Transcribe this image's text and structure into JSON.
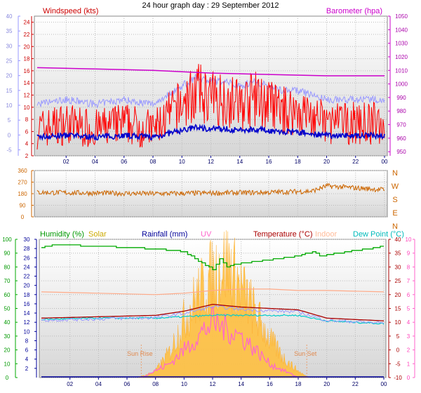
{
  "page_title": "24 hour graph day : 29 September 2012",
  "colors": {
    "windspeed": "#ff0000",
    "wind_avg": "#0000cc",
    "barometer": "#cc00cc",
    "gust_line": "#9999ff",
    "direction": "#cc6600",
    "humidity": "#00aa00",
    "solar": "#ffc040",
    "rainfall": "#000099",
    "uv": "#ff66cc",
    "temperature": "#aa0000",
    "indoor": "#ffaa88",
    "dewpoint": "#00cccc"
  },
  "chart_data": [
    {
      "type": "line",
      "id": "wind_baro",
      "title_left": "Windspeed (kts)",
      "title_right": "Barometer (hpa)",
      "x_ticks": [
        "02",
        "04",
        "06",
        "08",
        "10",
        "12",
        "14",
        "16",
        "18",
        "20",
        "22",
        "00"
      ],
      "y_left_red": {
        "ticks": [
          2,
          4,
          6,
          8,
          10,
          12,
          14,
          16,
          18,
          20,
          22,
          24
        ],
        "range": [
          2,
          25
        ]
      },
      "y_left_blue": {
        "ticks": [
          -5,
          0,
          5,
          10,
          15,
          20,
          25,
          30,
          35,
          40
        ],
        "range": [
          -7,
          40
        ]
      },
      "y_right": {
        "ticks": [
          950,
          960,
          970,
          980,
          990,
          1000,
          1010,
          1020,
          1030,
          1040,
          1050
        ],
        "range": [
          947,
          1050
        ]
      },
      "series": [
        {
          "name": "Windspeed",
          "hours": [
            0,
            2,
            4,
            6,
            8,
            10,
            11,
            12,
            13,
            14,
            15,
            16,
            17,
            18,
            19,
            20,
            22,
            24
          ],
          "values": [
            6,
            7,
            6,
            7,
            6,
            10,
            12,
            11,
            11,
            10,
            11,
            10,
            9,
            9,
            8,
            7,
            7,
            7
          ]
        },
        {
          "name": "Barometer",
          "hours": [
            0,
            4,
            8,
            12,
            16,
            20,
            24
          ],
          "values": [
            1012,
            1011,
            1010,
            1008,
            1007,
            1006,
            1006
          ]
        }
      ]
    },
    {
      "type": "line",
      "id": "direction",
      "y_ticks": [
        360,
        270,
        180,
        90,
        0
      ],
      "compass": [
        "N",
        "W",
        "S",
        "E",
        "N"
      ],
      "series": [
        {
          "name": "Direction",
          "hours": [
            0,
            4,
            8,
            12,
            16,
            19,
            20,
            24
          ],
          "values": [
            190,
            185,
            180,
            185,
            190,
            200,
            240,
            210
          ]
        }
      ]
    },
    {
      "type": "line",
      "id": "temp_hum",
      "legend": [
        "Humidity (%)",
        "Solar",
        "Rainfall (mm)",
        "UV",
        "Temperature (°C)",
        "Indoor",
        "Dew Point (°C)"
      ],
      "y_left_green": {
        "ticks": [
          0,
          10,
          20,
          30,
          40,
          50,
          60,
          70,
          80,
          90,
          100
        ],
        "range": [
          0,
          100
        ]
      },
      "y_left_blue": {
        "ticks": [
          2,
          4,
          6,
          8,
          10,
          12,
          14,
          16,
          18,
          20,
          22,
          24,
          26,
          28,
          30
        ],
        "range": [
          0,
          30
        ]
      },
      "y_right_red": {
        "ticks": [
          -10,
          -5,
          0,
          5,
          10,
          15,
          20,
          25,
          30,
          35,
          40
        ],
        "range": [
          -10,
          40
        ]
      },
      "y_right_pink": {
        "ticks": [
          0,
          1,
          2,
          3,
          4,
          5,
          6,
          7,
          8,
          9,
          10
        ],
        "range": [
          0,
          10
        ]
      },
      "annotations": [
        "Sun Rise",
        "Sun Set"
      ],
      "series": [
        {
          "name": "Humidity",
          "hours": [
            0,
            1,
            4,
            8,
            10,
            11,
            12,
            12.5,
            13,
            13.5,
            15,
            18,
            19,
            19.5,
            24
          ],
          "values": [
            94,
            96,
            95,
            93,
            91,
            84,
            78,
            86,
            80,
            82,
            84,
            88,
            91,
            88,
            95
          ]
        },
        {
          "name": "Temperature",
          "hours": [
            0,
            4,
            8,
            10,
            12,
            14,
            16,
            18,
            19,
            20,
            24
          ],
          "values": [
            11.5,
            12,
            12.5,
            14,
            16.5,
            15.5,
            15,
            14.5,
            13,
            11.5,
            10.5
          ]
        },
        {
          "name": "Dew Point",
          "hours": [
            0,
            4,
            8,
            10,
            12,
            14,
            16,
            18,
            20,
            24
          ],
          "values": [
            11,
            11.5,
            11.5,
            12,
            12.5,
            12.5,
            12.5,
            12.5,
            10.5,
            9.5
          ]
        },
        {
          "name": "Indoor",
          "hours": [
            0,
            4,
            8,
            10,
            12,
            14,
            16,
            18,
            20,
            24
          ],
          "values": [
            21,
            20.5,
            20,
            20.5,
            21.5,
            22,
            22,
            21.5,
            21.5,
            21
          ]
        },
        {
          "name": "Solar",
          "hours": [
            6.8,
            8,
            9,
            10,
            11,
            12,
            13,
            14,
            15,
            16,
            17,
            18,
            18.7
          ],
          "values": [
            0,
            0.5,
            2,
            4.5,
            6.5,
            8,
            9,
            7,
            5,
            3,
            1.5,
            0.5,
            0
          ]
        },
        {
          "name": "UV",
          "hours": [
            7,
            9,
            10,
            11,
            12,
            13,
            14,
            15,
            16,
            17,
            18
          ],
          "values": [
            0,
            1,
            2,
            3,
            4,
            3.5,
            3,
            2,
            1,
            0.5,
            0
          ]
        },
        {
          "name": "Rainfall",
          "hours": [
            0,
            24
          ],
          "values": [
            0,
            0
          ]
        }
      ]
    }
  ]
}
